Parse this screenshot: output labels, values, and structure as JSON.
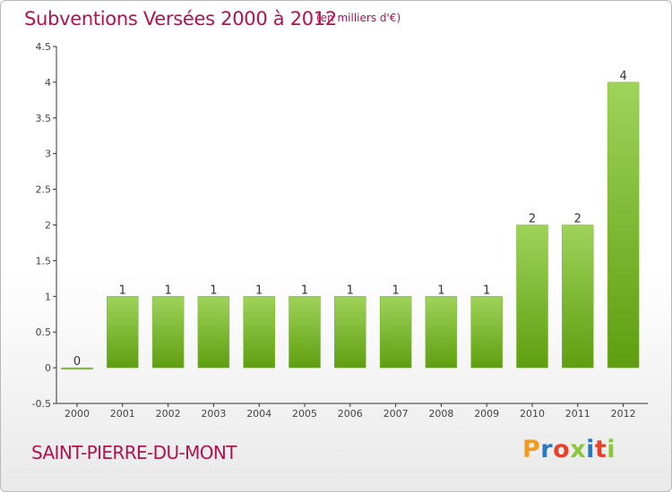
{
  "header": {
    "title": "Subventions Versées 2000 à 2012",
    "subtitle": "(en milliers d'€)"
  },
  "footer": {
    "place": "SAINT-PIERRE-DU-MONT",
    "brand": "Proxiti"
  },
  "colors": {
    "accent": "#b0134e",
    "bar_top": "#9fd35a",
    "bar_bottom": "#5f9e10",
    "axis": "#333333"
  },
  "chart_data": {
    "type": "bar",
    "title": "Subventions Versées 2000 à 2012",
    "subtitle": "(en milliers d'€)",
    "xlabel": "",
    "ylabel": "",
    "categories": [
      "2000",
      "2001",
      "2002",
      "2003",
      "2004",
      "2005",
      "2006",
      "2007",
      "2008",
      "2009",
      "2010",
      "2011",
      "2012"
    ],
    "values": [
      0,
      1,
      1,
      1,
      1,
      1,
      1,
      1,
      1,
      1,
      2,
      2,
      4
    ],
    "data_labels": [
      "0",
      "1",
      "1",
      "1",
      "1",
      "1",
      "1",
      "1",
      "1",
      "1",
      "2",
      "2",
      "4"
    ],
    "ylim": [
      -0.5,
      4.5
    ],
    "yticks": [
      -0.5,
      0,
      0.5,
      1,
      1.5,
      2,
      2.5,
      3,
      3.5,
      4,
      4.5
    ],
    "ytick_labels": [
      "-0.5",
      "0",
      "0.5",
      "1",
      "1.5",
      "2",
      "2.5",
      "3",
      "3.5",
      "4",
      "4.5"
    ],
    "grid": false,
    "legend": "none"
  }
}
